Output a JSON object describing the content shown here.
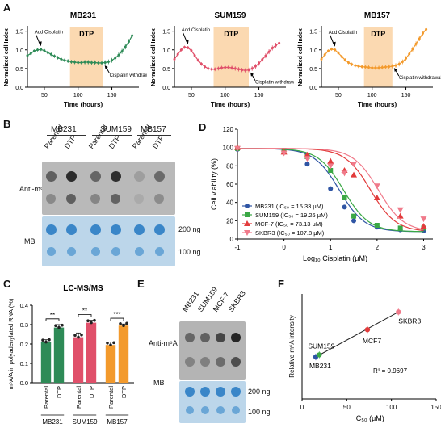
{
  "panels": {
    "A": {
      "label": "A",
      "charts": [
        {
          "type": "line",
          "title": "MB231",
          "color": "#2e8b57",
          "xlabel": "Time (hours)",
          "ylabel": "Normalized cell Index",
          "xlim": [
            25,
            190
          ],
          "ylim": [
            0,
            1.6
          ],
          "xticks": [
            "50",
            "100",
            "150"
          ],
          "yticks": [
            "0.0",
            "0.5",
            "1.0",
            "1.5"
          ],
          "dtp_band": [
            88,
            137
          ],
          "dtp_label": "DTP",
          "annotations": {
            "add": "Add Cisplatin",
            "withdraw": "Cisplatin withdrawal"
          },
          "x": [
            25,
            30,
            35,
            40,
            45,
            50,
            55,
            60,
            65,
            70,
            75,
            80,
            85,
            90,
            95,
            100,
            105,
            110,
            115,
            120,
            125,
            130,
            135,
            140,
            145,
            150,
            155,
            160,
            165,
            170,
            175,
            180
          ],
          "y": [
            0.85,
            0.9,
            0.97,
            1.0,
            1.01,
            0.98,
            0.93,
            0.88,
            0.83,
            0.79,
            0.75,
            0.72,
            0.7,
            0.68,
            0.67,
            0.66,
            0.66,
            0.67,
            0.67,
            0.66,
            0.66,
            0.65,
            0.65,
            0.66,
            0.68,
            0.72,
            0.78,
            0.86,
            0.96,
            1.08,
            1.22,
            1.38
          ]
        },
        {
          "type": "line",
          "title": "SUM159",
          "color": "#e0506a",
          "xlabel": "Time (hours)",
          "ylabel": "Normalized cell Index",
          "xlim": [
            25,
            190
          ],
          "ylim": [
            0,
            1.6
          ],
          "xticks": [
            "50",
            "100",
            "150"
          ],
          "yticks": [
            "0.0",
            "0.5",
            "1.0",
            "1.5"
          ],
          "dtp_band": [
            83,
            135
          ],
          "dtp_label": "DTP",
          "annotations": {
            "add": "Add Cisplatin",
            "withdraw": "Cisplatin withdrawal"
          },
          "x": [
            25,
            30,
            35,
            40,
            45,
            50,
            55,
            60,
            65,
            70,
            75,
            80,
            85,
            90,
            95,
            100,
            105,
            110,
            115,
            120,
            125,
            130,
            135,
            140,
            145,
            150,
            155,
            160,
            165,
            170,
            175,
            180
          ],
          "y": [
            0.75,
            0.88,
            1.0,
            1.07,
            1.06,
            0.98,
            0.85,
            0.72,
            0.62,
            0.55,
            0.5,
            0.48,
            0.48,
            0.5,
            0.52,
            0.53,
            0.53,
            0.52,
            0.5,
            0.48,
            0.46,
            0.45,
            0.46,
            0.5,
            0.56,
            0.64,
            0.74,
            0.84,
            0.95,
            1.05,
            1.12,
            1.18
          ]
        },
        {
          "type": "line",
          "title": "MB157",
          "color": "#f39a2c",
          "xlabel": "Time (hours)",
          "ylabel": "Normalized cell Index",
          "xlim": [
            25,
            190
          ],
          "ylim": [
            0,
            1.6
          ],
          "xticks": [
            "50",
            "100",
            "150"
          ],
          "yticks": [
            "0.0",
            "0.5",
            "1.0",
            "1.5"
          ],
          "dtp_band": [
            88,
            130
          ],
          "dtp_label": "DTP",
          "annotations": {
            "add": "Add Cisplatin",
            "withdraw": "Cisplatin withdrawal"
          },
          "x": [
            25,
            30,
            35,
            40,
            45,
            50,
            55,
            60,
            65,
            70,
            75,
            80,
            85,
            90,
            95,
            100,
            105,
            110,
            115,
            120,
            125,
            130,
            135,
            140,
            145,
            150,
            155,
            160,
            165,
            170,
            175,
            180
          ],
          "y": [
            0.75,
            0.87,
            0.97,
            1.02,
            1.0,
            0.92,
            0.82,
            0.73,
            0.66,
            0.61,
            0.58,
            0.56,
            0.55,
            0.54,
            0.53,
            0.52,
            0.52,
            0.52,
            0.53,
            0.54,
            0.55,
            0.56,
            0.58,
            0.62,
            0.68,
            0.77,
            0.89,
            1.02,
            1.16,
            1.3,
            1.44,
            1.55
          ]
        }
      ]
    },
    "B": {
      "label": "B",
      "groups": [
        "MB231",
        "SUM159",
        "MB157"
      ],
      "lanes": [
        "Parental",
        "DTP",
        "Parental",
        "DTP",
        "Parental",
        "DTP"
      ],
      "row_label_top": "Anti-m⁶A",
      "row_label_bottom": "MB",
      "amounts": [
        "200 ng",
        "100 ng"
      ],
      "intensity_top": [
        0.62,
        0.92,
        0.58,
        0.9,
        0.25,
        0.55
      ],
      "intensity_bottom": [
        0.42,
        0.7,
        0.45,
        0.68,
        0.2,
        0.4
      ]
    },
    "C": {
      "label": "C",
      "chart_data": {
        "type": "bar",
        "title": "LC-MS/MS",
        "ylabel": "m⁶A/A in polyadenylated RNA (%)",
        "ylim": [
          0,
          0.4
        ],
        "yticks": [
          "0.0",
          "0.1",
          "0.2",
          "0.3",
          "0.4"
        ],
        "categories": [
          "Parental",
          "DTP",
          "Parental",
          "DTP",
          "Parental",
          "DTP"
        ],
        "groups": [
          "MB231",
          "SUM159",
          "MB157"
        ],
        "values": [
          0.21,
          0.285,
          0.235,
          0.31,
          0.195,
          0.295
        ],
        "errors": [
          0.012,
          0.015,
          0.022,
          0.012,
          0.015,
          0.008
        ],
        "colors": [
          "#2e8b57",
          "#2e8b57",
          "#e0506a",
          "#e0506a",
          "#f39a2c",
          "#f39a2c"
        ],
        "significance": [
          "**",
          "**",
          "***"
        ]
      }
    },
    "D": {
      "label": "D",
      "chart_data": {
        "type": "line",
        "xlabel": "Log₁₀ Cisplatin (μM)",
        "ylabel": "Cell viability (%)",
        "xlim": [
          -1,
          3.2
        ],
        "ylim": [
          0,
          120
        ],
        "xticks": [
          "-1",
          "0",
          "1",
          "2",
          "3"
        ],
        "yticks": [
          "0",
          "20",
          "40",
          "60",
          "80",
          "100",
          "120"
        ],
        "x": [
          -1,
          0,
          0.5,
          1.0,
          1.3,
          1.5,
          2.0,
          2.5,
          3.0
        ],
        "series": [
          {
            "name": "MB231 (IC₅₀ = 15.33 μM)",
            "color": "#2f55a4",
            "marker": "circle",
            "values": [
              98,
              96,
              82,
              55,
              35,
              20,
              13,
              10,
              9
            ],
            "ic50_log": 1.19
          },
          {
            "name": "SUM159 (IC₅₀ = 19.26 μM)",
            "color": "#3aa845",
            "marker": "square",
            "values": [
              99,
              97,
              90,
              75,
              45,
              25,
              15,
              12,
              12
            ],
            "ic50_log": 1.28
          },
          {
            "name": "MCF-7 (IC₅₀ = 73.13 μM)",
            "color": "#e23b3b",
            "marker": "triangle",
            "values": [
              100,
              95,
              92,
              85,
              75,
              70,
              45,
              25,
              14
            ],
            "ic50_log": 1.86
          },
          {
            "name": "SKBR3 (IC₅₀ = 107.8 μM)",
            "color": "#f07a8a",
            "marker": "triangle-down",
            "values": [
              99,
              94,
              88,
              80,
              72,
              82,
              58,
              32,
              22
            ],
            "ic50_log": 2.03
          }
        ]
      }
    },
    "E": {
      "label": "E",
      "lanes": [
        "MB231",
        "SUM159",
        "MCF-7",
        "SKBR3"
      ],
      "row_label_top": "Anti-m⁶A",
      "row_label_bottom": "MB",
      "amounts": [
        "200 ng",
        "100 ng"
      ],
      "intensity_top": [
        0.55,
        0.58,
        0.75,
        0.95
      ],
      "intensity_bottom": [
        0.4,
        0.42,
        0.55,
        0.75
      ]
    },
    "F": {
      "label": "F",
      "chart_data": {
        "type": "scatter",
        "xlabel": "IC₅₀ (μM)",
        "ylabel": "Relative m⁶A intensity",
        "xlim": [
          0,
          150
        ],
        "ylim": [
          0,
          2.5
        ],
        "xticks": [
          "0",
          "50",
          "100",
          "150"
        ],
        "points": [
          {
            "name": "MB231",
            "x": 15.33,
            "y": 1.0,
            "color": "#2f55a4"
          },
          {
            "name": "SUM159",
            "x": 19.26,
            "y": 1.05,
            "color": "#3aa845"
          },
          {
            "name": "MCF7",
            "x": 73.13,
            "y": 1.65,
            "color": "#e23b3b"
          },
          {
            "name": "SKBR3",
            "x": 107.8,
            "y": 2.07,
            "color": "#f07a8a"
          }
        ],
        "r2_label": "R² = 0.9697"
      }
    }
  }
}
